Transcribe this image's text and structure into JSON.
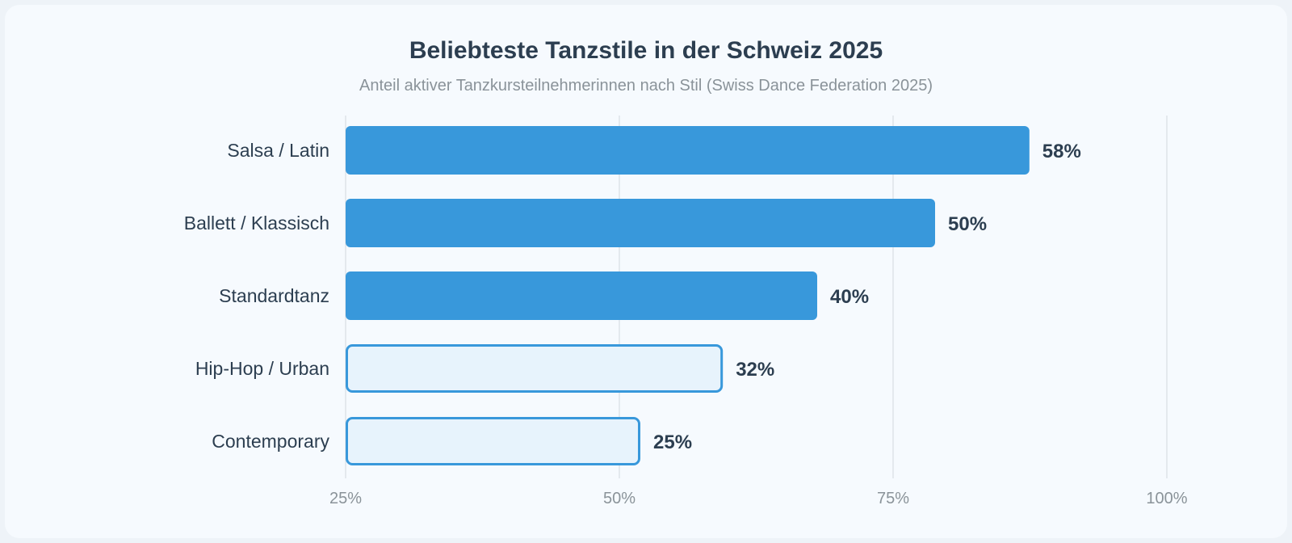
{
  "chart_data": {
    "type": "bar",
    "orientation": "horizontal",
    "title": "Beliebteste Tanzstile in der Schweiz 2025",
    "subtitle": "Anteil aktiver Tanzkursteilnehmerinnen nach Stil (Swiss Dance Federation 2025)",
    "categories": [
      "Salsa / Latin",
      "Ballett / Klassisch",
      "Standardtanz",
      "Hip-Hop / Urban",
      "Contemporary"
    ],
    "values": [
      58,
      50,
      40,
      32,
      25
    ],
    "value_labels": [
      "58%",
      "50%",
      "40%",
      "32%",
      "25%"
    ],
    "x_tick_labels": [
      "25%",
      "50%",
      "75%",
      "100%"
    ],
    "highlighted": [
      true,
      true,
      true,
      false,
      false
    ],
    "grid": true,
    "colors": {
      "highlight": "#3898db",
      "muted_fill": "#e7f3fc",
      "muted_stroke": "#3898db",
      "text": "#2c3e50",
      "axis": "#8a9399"
    }
  }
}
